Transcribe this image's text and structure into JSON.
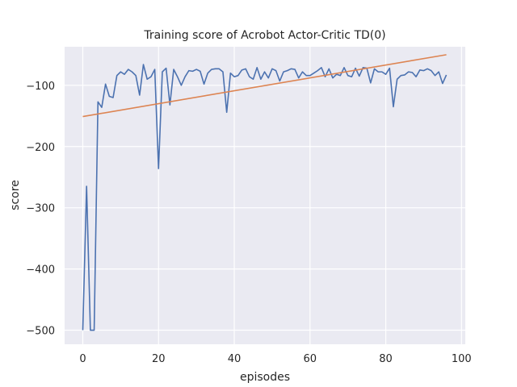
{
  "chart_data": {
    "type": "line",
    "title": "Training score of Acrobot Actor-Critic TD(0)",
    "xlabel": "episodes",
    "ylabel": "score",
    "xlim": [
      -4.8,
      101
    ],
    "ylim": [
      -523,
      -37
    ],
    "xticks": [
      0,
      20,
      40,
      60,
      80,
      100
    ],
    "xtick_labels": [
      "0",
      "20",
      "40",
      "60",
      "80",
      "100"
    ],
    "yticks": [
      -500,
      -400,
      -300,
      -200,
      -100
    ],
    "ytick_labels": [
      "−500",
      "−400",
      "−300",
      "−200",
      "−100"
    ],
    "grid": true,
    "background": "#eaeaf2",
    "series": [
      {
        "color": "#4c72b0",
        "x": [
          0,
          1,
          2,
          3,
          4,
          5,
          6,
          7,
          8,
          9,
          10,
          11,
          12,
          13,
          14,
          15,
          16,
          17,
          18,
          19,
          20,
          21,
          22,
          23,
          24,
          25,
          26,
          27,
          28,
          29,
          30,
          31,
          32,
          33,
          34,
          35,
          36,
          37,
          38,
          39,
          40,
          41,
          42,
          43,
          44,
          45,
          46,
          47,
          48,
          49,
          50,
          51,
          52,
          53,
          54,
          55,
          56,
          57,
          58,
          59,
          60,
          61,
          62,
          63,
          64,
          65,
          66,
          67,
          68,
          69,
          70,
          71,
          72,
          73,
          74,
          75,
          76,
          77,
          78,
          79,
          80,
          81,
          82,
          83,
          84,
          85,
          86,
          87,
          88,
          89,
          90,
          91,
          92,
          93,
          94,
          95,
          96
        ],
        "y": [
          -500,
          -265,
          -500,
          -500,
          -127,
          -136,
          -98,
          -118,
          -120,
          -84,
          -78,
          -82,
          -74,
          -78,
          -84,
          -116,
          -66,
          -90,
          -86,
          -74,
          -236,
          -78,
          -72,
          -132,
          -74,
          -86,
          -100,
          -86,
          -76,
          -77,
          -74,
          -77,
          -98,
          -80,
          -74,
          -73,
          -73,
          -78,
          -144,
          -80,
          -86,
          -84,
          -75,
          -73,
          -86,
          -90,
          -71,
          -90,
          -78,
          -88,
          -73,
          -76,
          -93,
          -78,
          -76,
          -73,
          -74,
          -88,
          -78,
          -84,
          -84,
          -80,
          -76,
          -71,
          -86,
          -73,
          -88,
          -82,
          -84,
          -71,
          -84,
          -86,
          -72,
          -85,
          -71,
          -72,
          -96,
          -73,
          -78,
          -78,
          -82,
          -72,
          -135,
          -90,
          -84,
          -83,
          -78,
          -79,
          -86,
          -75,
          -76,
          -73,
          -76,
          -84,
          -78,
          -97,
          -83
        ]
      },
      {
        "color": "#dd8452",
        "x": [
          0,
          96
        ],
        "y": [
          -151,
          -50
        ]
      }
    ]
  }
}
